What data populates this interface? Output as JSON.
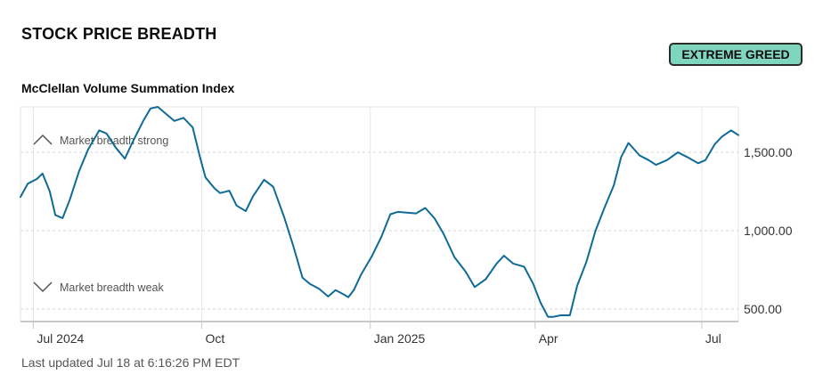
{
  "header": {
    "title": "STOCK PRICE BREADTH",
    "badge_label": "EXTREME GREED",
    "badge_color": "#7fd6be"
  },
  "footer": {
    "last_updated": "Last updated Jul 18 at 6:16:26 PM EDT"
  },
  "chart_data": {
    "type": "line",
    "title": "McClellan Volume Summation Index",
    "ylim": [
      420,
      1790
    ],
    "y_ticks": [
      500,
      1000,
      1500
    ],
    "y_tick_labels": [
      "500.00",
      "1,000.00",
      "1,500.00"
    ],
    "xlim": [
      "2024-06-24",
      "2025-07-21"
    ],
    "x_ticks": [
      "2024-07-01",
      "2024-10-01",
      "2025-01-01",
      "2025-04-01",
      "2025-07-01"
    ],
    "x_tick_labels": [
      "Jul 2024",
      "Oct",
      "Jan 2025",
      "Apr",
      "Jul"
    ],
    "grid": true,
    "line_color": "#0f6b96",
    "annotations": {
      "strong": "Market breadth strong",
      "weak": "Market breadth weak"
    },
    "series": [
      {
        "x": [
          "2024-06-24",
          "2024-06-28",
          "2024-07-03",
          "2024-07-06",
          "2024-07-10",
          "2024-07-13",
          "2024-07-17",
          "2024-07-21",
          "2024-07-26",
          "2024-07-31",
          "2024-08-06",
          "2024-08-10",
          "2024-08-15",
          "2024-08-20",
          "2024-08-24",
          "2024-08-30",
          "2024-09-03",
          "2024-09-07",
          "2024-09-11",
          "2024-09-16",
          "2024-09-21",
          "2024-09-26",
          "2024-09-30",
          "2024-10-03",
          "2024-10-08",
          "2024-10-11",
          "2024-10-16",
          "2024-10-20",
          "2024-10-25",
          "2024-10-29",
          "2024-11-04",
          "2024-11-09",
          "2024-11-15",
          "2024-11-20",
          "2024-11-25",
          "2024-11-29",
          "2024-12-04",
          "2024-12-09",
          "2024-12-13",
          "2024-12-18",
          "2024-12-20",
          "2024-12-23",
          "2024-12-27",
          "2025-01-02",
          "2025-01-07",
          "2025-01-12",
          "2025-01-16",
          "2025-01-21",
          "2025-01-26",
          "2025-01-31",
          "2025-02-05",
          "2025-02-10",
          "2025-02-16",
          "2025-02-22",
          "2025-02-27",
          "2025-03-05",
          "2025-03-11",
          "2025-03-15",
          "2025-03-20",
          "2025-03-26",
          "2025-03-31",
          "2025-04-04",
          "2025-04-08",
          "2025-04-11",
          "2025-04-15",
          "2025-04-20",
          "2025-04-24",
          "2025-04-29",
          "2025-05-04",
          "2025-05-09",
          "2025-05-14",
          "2025-05-18",
          "2025-05-22",
          "2025-05-28",
          "2025-06-02",
          "2025-06-06",
          "2025-06-12",
          "2025-06-18",
          "2025-06-23",
          "2025-06-29",
          "2025-07-03",
          "2025-07-08",
          "2025-07-12",
          "2025-07-17",
          "2025-07-21"
        ],
        "values": [
          1215,
          1300,
          1330,
          1365,
          1250,
          1100,
          1080,
          1200,
          1380,
          1520,
          1640,
          1620,
          1530,
          1460,
          1560,
          1700,
          1780,
          1790,
          1750,
          1700,
          1720,
          1660,
          1470,
          1340,
          1270,
          1240,
          1255,
          1160,
          1125,
          1220,
          1325,
          1280,
          1085,
          900,
          700,
          660,
          630,
          580,
          620,
          590,
          575,
          620,
          720,
          840,
          960,
          1105,
          1120,
          1115,
          1110,
          1145,
          1080,
          980,
          830,
          740,
          640,
          690,
          790,
          840,
          790,
          770,
          660,
          540,
          450,
          450,
          460,
          460,
          650,
          800,
          1000,
          1150,
          1290,
          1470,
          1560,
          1480,
          1450,
          1420,
          1450,
          1500,
          1470,
          1430,
          1450,
          1550,
          1600,
          1640,
          1610
        ]
      }
    ]
  }
}
